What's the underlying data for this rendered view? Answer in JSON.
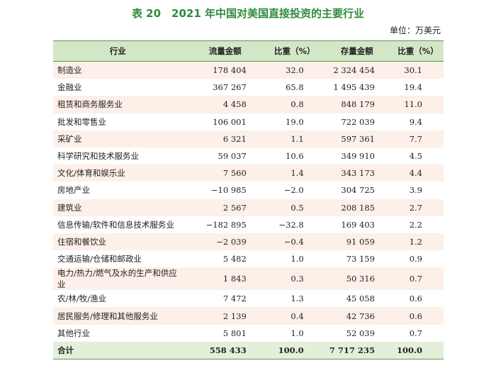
{
  "title": "表 20　2021 年中国对美国直接投资的主要行业",
  "unit": "单位：万美元",
  "table": {
    "header": [
      "行业",
      "流量金额",
      "比重（%）",
      "存量金额",
      "比重（%）"
    ],
    "rows": [
      [
        "制造业",
        "178 404",
        "32.0",
        "2 324 454",
        "30.1"
      ],
      [
        "金融业",
        "367 267",
        "65.8",
        "1 495 439",
        "19.4"
      ],
      [
        "租赁和商务服务业",
        "4 458",
        "0.8",
        "848 179",
        "11.0"
      ],
      [
        "批发和零售业",
        "106 001",
        "19.0",
        "722 039",
        "9.4"
      ],
      [
        "采矿业",
        "6 321",
        "1.1",
        "597 361",
        "7.7"
      ],
      [
        "科学研究和技术服务业",
        "59 037",
        "10.6",
        "349 910",
        "4.5"
      ],
      [
        "文化/体育和娱乐业",
        "7 560",
        "1.4",
        "343 173",
        "4.4"
      ],
      [
        "房地产业",
        "−10 985",
        "−2.0",
        "304 725",
        "3.9"
      ],
      [
        "建筑业",
        "2 567",
        "0.5",
        "208 185",
        "2.7"
      ],
      [
        "信息传输/软件和信息技术服务业",
        "−182 895",
        "−32.8",
        "169 403",
        "2.2"
      ],
      [
        "住宿和餐饮业",
        "−2 039",
        "−0.4",
        "91 059",
        "1.2"
      ],
      [
        "交通运输/仓储和邮政业",
        "5 482",
        "1.0",
        "73 159",
        "0.9"
      ],
      [
        "电力/热力/燃气及水的生产和供应业",
        "1 843",
        "0.3",
        "50 316",
        "0.7"
      ],
      [
        "农/林/牧/渔业",
        "7 472",
        "1.3",
        "45 058",
        "0.6"
      ],
      [
        "居民服务/修理和其他服务业",
        "2 139",
        "0.4",
        "42 736",
        "0.6"
      ],
      [
        "其他行业",
        "5 801",
        "1.0",
        "52 039",
        "0.7"
      ]
    ],
    "total": [
      "合计",
      "558 433",
      "100.0",
      "7 717 235",
      "100.0"
    ]
  }
}
